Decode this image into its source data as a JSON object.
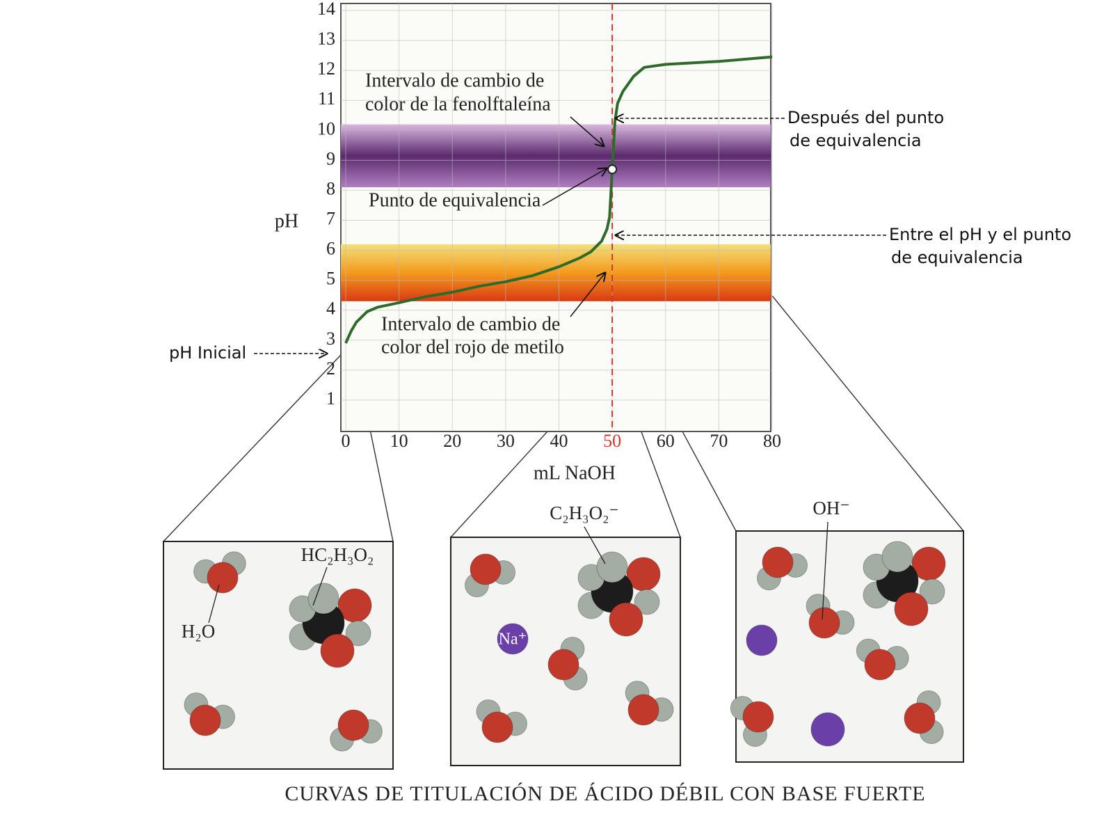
{
  "chart_data": {
    "type": "line",
    "x": [
      0,
      1,
      2,
      4,
      6,
      10,
      15,
      20,
      25,
      30,
      35,
      40,
      44,
      46,
      48,
      49,
      49.5,
      50,
      50.5,
      51,
      52,
      54,
      56,
      60,
      70,
      80
    ],
    "values": [
      2.9,
      3.3,
      3.6,
      3.95,
      4.1,
      4.25,
      4.45,
      4.6,
      4.8,
      4.95,
      5.15,
      5.45,
      5.75,
      5.95,
      6.3,
      6.7,
      7.1,
      8.7,
      10.3,
      10.9,
      11.3,
      11.8,
      12.1,
      12.2,
      12.3,
      12.45
    ],
    "color": "#2e6b2a",
    "xlim": [
      0,
      80
    ],
    "ylim": [
      0,
      14
    ],
    "xticks": [
      0,
      10,
      20,
      30,
      40,
      50,
      60,
      70,
      80
    ],
    "yticks": [
      1,
      2,
      3,
      4,
      5,
      6,
      7,
      8,
      9,
      10,
      11,
      12,
      13,
      14
    ],
    "xlabel": "mL NaOH",
    "ylabel": "pH",
    "grid": true,
    "equivalence_point": {
      "x": 50,
      "y": 8.7,
      "color": "#d9342b"
    },
    "bands": [
      {
        "range": [
          8.1,
          10.2
        ],
        "colors": [
          "#d9b8e0",
          "#5b2a6e",
          "#b07fc0"
        ]
      },
      {
        "range": [
          4.3,
          6.2
        ],
        "colors": [
          "#f3e07a",
          "#f39a1e",
          "#d93a12"
        ]
      }
    ],
    "annotations": [
      {
        "lines": [
          "Intervalo de cambio de",
          "color de la fenolftaleína"
        ]
      },
      {
        "lines": [
          "Punto de equivalencia"
        ]
      },
      {
        "lines": [
          "Intervalo de cambio de",
          "color del rojo de metilo"
        ]
      },
      {
        "lines": [
          "Después del punto",
          "de equivalencia"
        ]
      },
      {
        "lines": [
          "Entre el pH y el punto",
          "de equivalencia"
        ]
      },
      {
        "lines": [
          "pH Inicial"
        ]
      }
    ],
    "caption": "CURVAS DE TITULACIÓN DE ÁCIDO DÉBIL CON BASE FUERTE"
  },
  "panels": [
    {
      "labels": [
        "H₂O",
        "HC₂H₃O₂"
      ]
    },
    {
      "labels": [
        "C₂H₃O₂⁻",
        "Na⁺"
      ]
    },
    {
      "labels": [
        "OH⁻"
      ]
    }
  ]
}
